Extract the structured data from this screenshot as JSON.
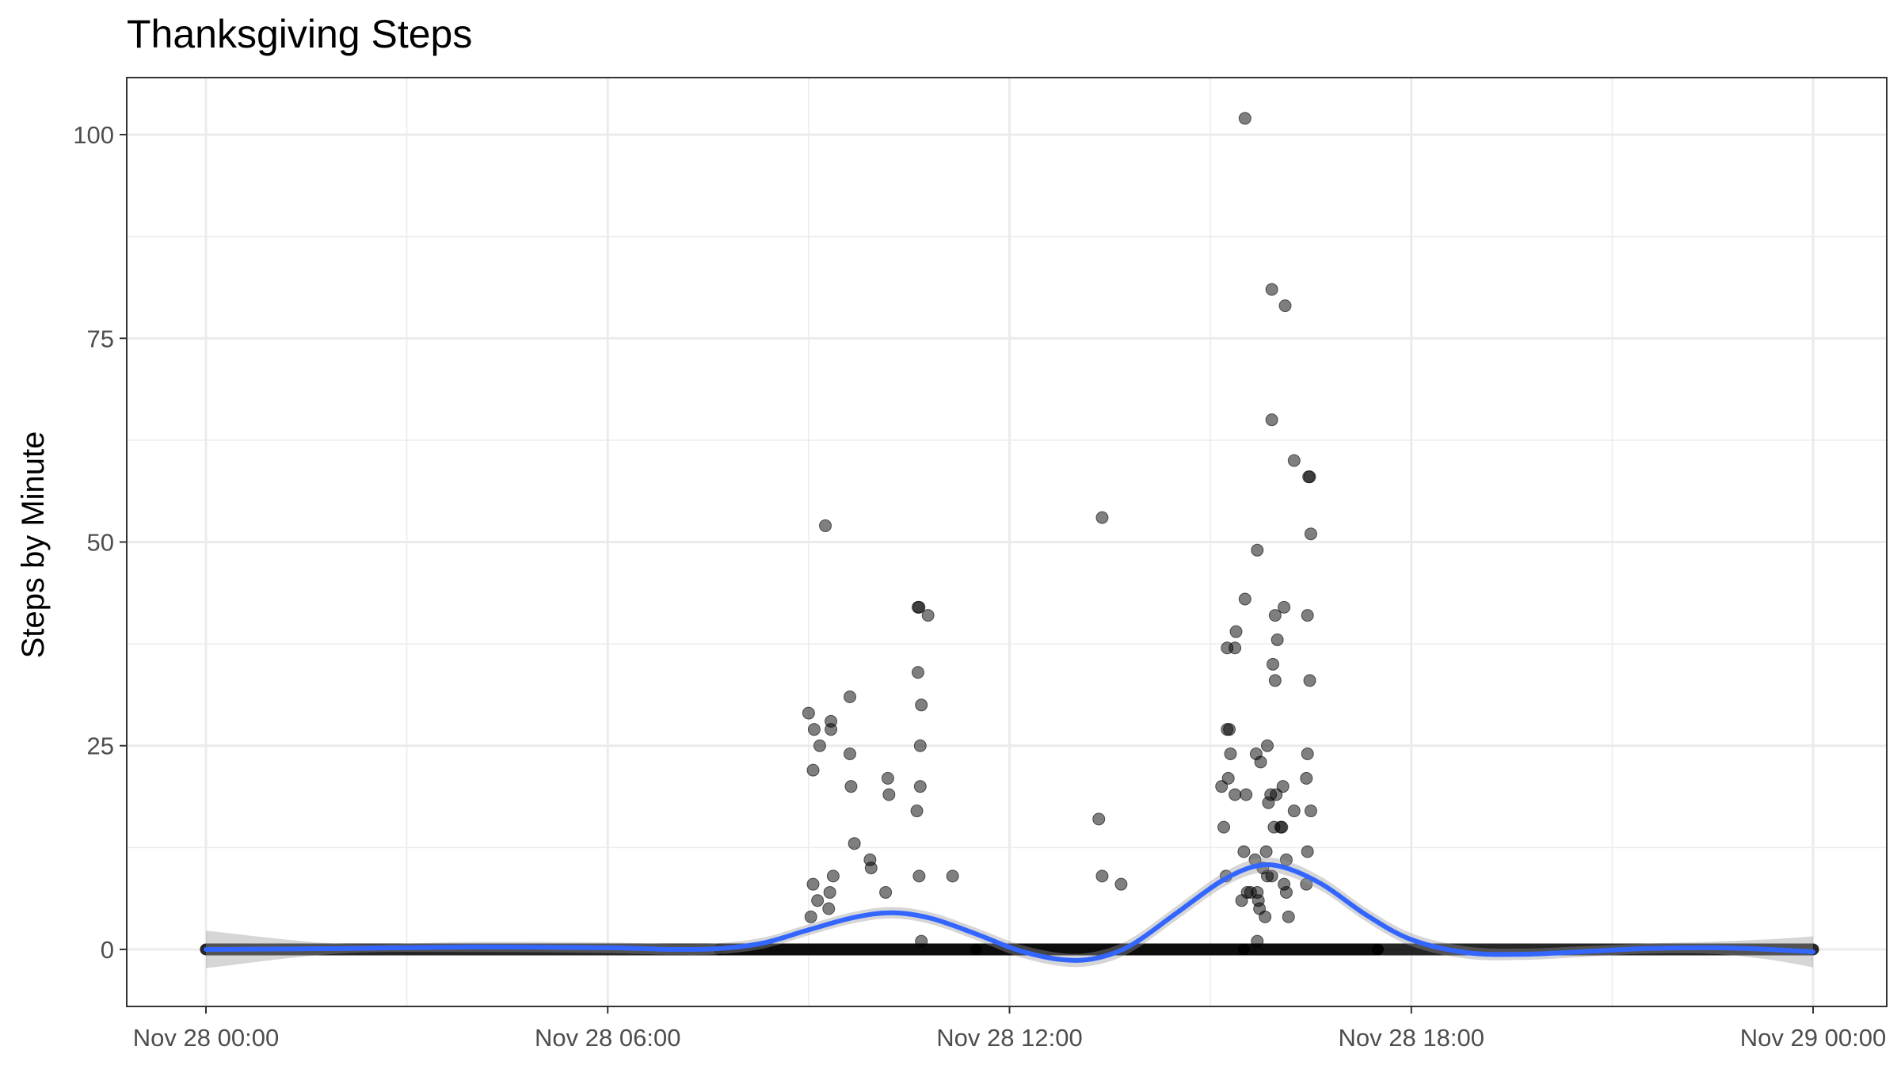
{
  "chart_data": {
    "type": "scatter",
    "title": "Thanksgiving Steps",
    "xlabel": "",
    "ylabel": "Steps by Minute",
    "x_axis": {
      "kind": "datetime",
      "range": [
        "Nov 28 00:00",
        "Nov 29 00:00"
      ],
      "ticks": [
        "Nov 28 00:00",
        "Nov 28 06:00",
        "Nov 28 12:00",
        "Nov 28 18:00",
        "Nov 29 00:00"
      ]
    },
    "y_axis": {
      "range": [
        -7,
        107
      ],
      "ticks": [
        0,
        25,
        50,
        75,
        100
      ]
    },
    "grid": true,
    "legend": "none",
    "colors": {
      "points": "#000000",
      "smooth_line": "#3366ff",
      "ribbon": "#999999"
    },
    "zero_step_bands": [
      {
        "from": "Nov 28 00:00",
        "to": "Nov 28 07:40"
      },
      {
        "from": "Nov 28 07:40",
        "to": "Nov 28 11:30",
        "dense": true
      },
      {
        "from": "Nov 28 11:30",
        "to": "Nov 28 15:30",
        "dense": true
      },
      {
        "from": "Nov 28 15:30",
        "to": "Nov 28 17:30",
        "dense": true
      },
      {
        "from": "Nov 28 17:30",
        "to": "Nov 29 00:00"
      }
    ],
    "points": [
      {
        "x": "Nov 28 09:00",
        "y": 29
      },
      {
        "x": "Nov 28 09:05",
        "y": 27
      },
      {
        "x": "Nov 28 09:10",
        "y": 25
      },
      {
        "x": "Nov 28 09:04",
        "y": 22
      },
      {
        "x": "Nov 28 09:04",
        "y": 8
      },
      {
        "x": "Nov 28 09:08",
        "y": 6
      },
      {
        "x": "Nov 28 09:02",
        "y": 4
      },
      {
        "x": "Nov 28 09:15",
        "y": 52
      },
      {
        "x": "Nov 28 09:20",
        "y": 28
      },
      {
        "x": "Nov 28 09:20",
        "y": 27
      },
      {
        "x": "Nov 28 09:22",
        "y": 9
      },
      {
        "x": "Nov 28 09:19",
        "y": 7
      },
      {
        "x": "Nov 28 09:18",
        "y": 5
      },
      {
        "x": "Nov 28 09:37",
        "y": 31
      },
      {
        "x": "Nov 28 09:37",
        "y": 24
      },
      {
        "x": "Nov 28 09:38",
        "y": 20
      },
      {
        "x": "Nov 28 09:41",
        "y": 13
      },
      {
        "x": "Nov 28 09:55",
        "y": 11
      },
      {
        "x": "Nov 28 09:56",
        "y": 10
      },
      {
        "x": "Nov 28 10:11",
        "y": 21
      },
      {
        "x": "Nov 28 10:12",
        "y": 19
      },
      {
        "x": "Nov 28 10:09",
        "y": 7
      },
      {
        "x": "Nov 28 10:38",
        "y": 42
      },
      {
        "x": "Nov 28 10:39",
        "y": 42
      },
      {
        "x": "Nov 28 10:38",
        "y": 34
      },
      {
        "x": "Nov 28 10:41",
        "y": 30
      },
      {
        "x": "Nov 28 10:40",
        "y": 25
      },
      {
        "x": "Nov 28 10:40",
        "y": 20
      },
      {
        "x": "Nov 28 10:37",
        "y": 17
      },
      {
        "x": "Nov 28 10:39",
        "y": 9
      },
      {
        "x": "Nov 28 10:41",
        "y": 1
      },
      {
        "x": "Nov 28 10:47",
        "y": 41
      },
      {
        "x": "Nov 28 11:09",
        "y": 9
      },
      {
        "x": "Nov 28 13:20",
        "y": 16
      },
      {
        "x": "Nov 28 13:23",
        "y": 53
      },
      {
        "x": "Nov 28 13:23",
        "y": 9
      },
      {
        "x": "Nov 28 13:40",
        "y": 8
      },
      {
        "x": "Nov 28 15:10",
        "y": 20
      },
      {
        "x": "Nov 28 15:12",
        "y": 15
      },
      {
        "x": "Nov 28 15:14",
        "y": 9
      },
      {
        "x": "Nov 28 15:15",
        "y": 37
      },
      {
        "x": "Nov 28 15:15",
        "y": 27
      },
      {
        "x": "Nov 28 15:17",
        "y": 27
      },
      {
        "x": "Nov 28 15:18",
        "y": 24
      },
      {
        "x": "Nov 28 15:16",
        "y": 21
      },
      {
        "x": "Nov 28 15:23",
        "y": 39
      },
      {
        "x": "Nov 28 15:22",
        "y": 37
      },
      {
        "x": "Nov 28 15:22",
        "y": 19
      },
      {
        "x": "Nov 28 15:28",
        "y": 6
      },
      {
        "x": "Nov 28 15:30",
        "y": 12
      },
      {
        "x": "Nov 28 15:31",
        "y": 43
      },
      {
        "x": "Nov 28 15:32",
        "y": 19
      },
      {
        "x": "Nov 28 15:33",
        "y": 7
      },
      {
        "x": "Nov 28 15:36",
        "y": 7
      },
      {
        "x": "Nov 28 15:31",
        "y": 102
      },
      {
        "x": "Nov 28 15:40",
        "y": 11
      },
      {
        "x": "Nov 28 15:41",
        "y": 24
      },
      {
        "x": "Nov 28 15:42",
        "y": 49
      },
      {
        "x": "Nov 28 15:42",
        "y": 7
      },
      {
        "x": "Nov 28 15:43",
        "y": 6
      },
      {
        "x": "Nov 28 15:44",
        "y": 5
      },
      {
        "x": "Nov 28 15:42",
        "y": 1
      },
      {
        "x": "Nov 28 15:45",
        "y": 23
      },
      {
        "x": "Nov 28 15:47",
        "y": 10
      },
      {
        "x": "Nov 28 15:49",
        "y": 4
      },
      {
        "x": "Nov 28 15:50",
        "y": 12
      },
      {
        "x": "Nov 28 15:51",
        "y": 25
      },
      {
        "x": "Nov 28 15:51",
        "y": 9
      },
      {
        "x": "Nov 28 15:52",
        "y": 18
      },
      {
        "x": "Nov 28 15:54",
        "y": 19
      },
      {
        "x": "Nov 28 15:55",
        "y": 9
      },
      {
        "x": "Nov 28 15:55",
        "y": 81
      },
      {
        "x": "Nov 28 15:55",
        "y": 65
      },
      {
        "x": "Nov 28 15:56",
        "y": 35
      },
      {
        "x": "Nov 28 15:57",
        "y": 15
      },
      {
        "x": "Nov 28 15:58",
        "y": 33
      },
      {
        "x": "Nov 28 15:58",
        "y": 41
      },
      {
        "x": "Nov 28 15:59",
        "y": 19
      },
      {
        "x": "Nov 28 16:00",
        "y": 38
      },
      {
        "x": "Nov 28 16:03",
        "y": 15
      },
      {
        "x": "Nov 28 16:04",
        "y": 15
      },
      {
        "x": "Nov 28 16:05",
        "y": 20
      },
      {
        "x": "Nov 28 16:06",
        "y": 42
      },
      {
        "x": "Nov 28 16:06",
        "y": 8
      },
      {
        "x": "Nov 28 16:08",
        "y": 11
      },
      {
        "x": "Nov 28 16:08",
        "y": 7
      },
      {
        "x": "Nov 28 16:07",
        "y": 79
      },
      {
        "x": "Nov 28 16:10",
        "y": 4
      },
      {
        "x": "Nov 28 16:15",
        "y": 60
      },
      {
        "x": "Nov 28 16:15",
        "y": 17
      },
      {
        "x": "Nov 28 16:27",
        "y": 41
      },
      {
        "x": "Nov 28 16:27",
        "y": 24
      },
      {
        "x": "Nov 28 16:26",
        "y": 21
      },
      {
        "x": "Nov 28 16:27",
        "y": 12
      },
      {
        "x": "Nov 28 16:26",
        "y": 8
      },
      {
        "x": "Nov 28 16:28",
        "y": 58
      },
      {
        "x": "Nov 28 16:29",
        "y": 58
      },
      {
        "x": "Nov 28 16:30",
        "y": 51
      },
      {
        "x": "Nov 28 16:29",
        "y": 33
      },
      {
        "x": "Nov 28 16:30",
        "y": 17
      }
    ],
    "smooth": [
      {
        "x": "Nov 28 00:00",
        "y": 0.0
      },
      {
        "x": "Nov 28 02:00",
        "y": 0.1
      },
      {
        "x": "Nov 28 04:00",
        "y": 0.3
      },
      {
        "x": "Nov 28 06:00",
        "y": 0.2
      },
      {
        "x": "Nov 28 07:00",
        "y": 0.0
      },
      {
        "x": "Nov 28 07:40",
        "y": 0.1
      },
      {
        "x": "Nov 28 08:20",
        "y": 0.8
      },
      {
        "x": "Nov 28 09:00",
        "y": 2.4
      },
      {
        "x": "Nov 28 09:40",
        "y": 3.9
      },
      {
        "x": "Nov 28 10:15",
        "y": 4.5
      },
      {
        "x": "Nov 28 10:50",
        "y": 3.8
      },
      {
        "x": "Nov 28 11:30",
        "y": 1.9
      },
      {
        "x": "Nov 28 12:10",
        "y": -0.2
      },
      {
        "x": "Nov 28 12:50",
        "y": -1.3
      },
      {
        "x": "Nov 28 13:20",
        "y": -1.0
      },
      {
        "x": "Nov 28 13:50",
        "y": 0.6
      },
      {
        "x": "Nov 28 14:30",
        "y": 4.5
      },
      {
        "x": "Nov 28 15:10",
        "y": 8.4
      },
      {
        "x": "Nov 28 15:40",
        "y": 10.2
      },
      {
        "x": "Nov 28 16:05",
        "y": 10.1
      },
      {
        "x": "Nov 28 16:40",
        "y": 8.0
      },
      {
        "x": "Nov 28 17:20",
        "y": 4.2
      },
      {
        "x": "Nov 28 18:00",
        "y": 1.2
      },
      {
        "x": "Nov 28 18:50",
        "y": -0.4
      },
      {
        "x": "Nov 28 19:40",
        "y": -0.6
      },
      {
        "x": "Nov 28 20:30",
        "y": -0.3
      },
      {
        "x": "Nov 28 21:30",
        "y": 0.1
      },
      {
        "x": "Nov 28 22:30",
        "y": 0.2
      },
      {
        "x": "Nov 28 23:20",
        "y": 0.0
      },
      {
        "x": "Nov 29 00:00",
        "y": -0.3
      }
    ],
    "ribbon_halfwidth": [
      {
        "x": "Nov 28 00:00",
        "y": 2.3
      },
      {
        "x": "Nov 28 01:00",
        "y": 0.9
      },
      {
        "x": "Nov 28 02:00",
        "y": 0.6
      },
      {
        "x": "Nov 28 10:15",
        "y": 0.7
      },
      {
        "x": "Nov 28 12:50",
        "y": 0.8
      },
      {
        "x": "Nov 28 15:50",
        "y": 0.9
      },
      {
        "x": "Nov 28 19:40",
        "y": 0.7
      },
      {
        "x": "Nov 28 22:00",
        "y": 0.6
      },
      {
        "x": "Nov 28 23:00",
        "y": 0.9
      },
      {
        "x": "Nov 29 00:00",
        "y": 1.9
      }
    ]
  }
}
